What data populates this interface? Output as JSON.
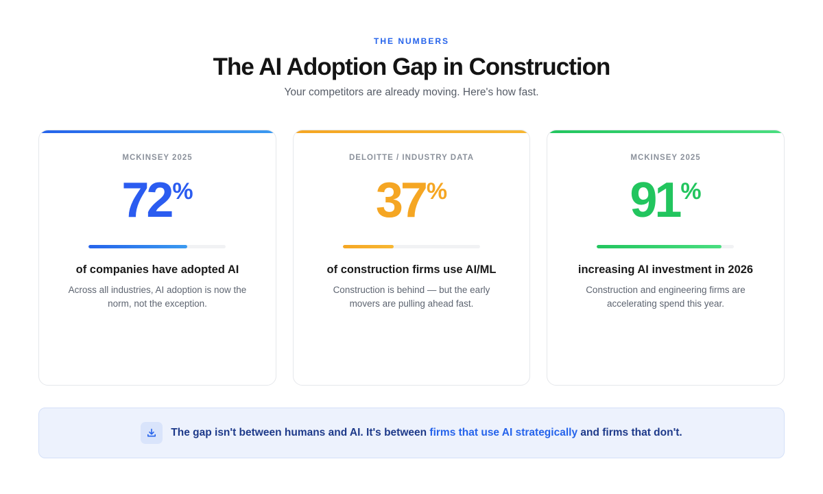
{
  "header": {
    "eyebrow": "THE NUMBERS",
    "title": "The AI Adoption Gap in Construction",
    "subtitle": "Your competitors are already moving. Here's how fast."
  },
  "cards": [
    {
      "source": "MCKINSEY 2025",
      "value": "72",
      "unit": "%",
      "progress": 0.72,
      "color": "#2b5cf0",
      "gradient": [
        "#2563eb",
        "#3b9af0"
      ],
      "label": "of companies have adopted AI",
      "description": "Across all industries, AI adoption is now the norm, not the exception."
    },
    {
      "source": "DELOITTE / INDUSTRY DATA",
      "value": "37",
      "unit": "%",
      "progress": 0.37,
      "color": "#f5a623",
      "gradient": [
        "#f5a623",
        "#f7b733"
      ],
      "label": "of construction firms use AI/ML",
      "description": "Construction is behind — but the early movers are pulling ahead fast."
    },
    {
      "source": "MCKINSEY 2025",
      "value": "91",
      "unit": "%",
      "progress": 0.91,
      "color": "#22c55e",
      "gradient": [
        "#22c55e",
        "#4ade80"
      ],
      "label": "increasing AI investment in 2026",
      "description": "Construction and engineering firms are accelerating spend this year."
    }
  ],
  "banner": {
    "icon": "download-icon",
    "text_before": "The gap isn't between humans and AI. It's between ",
    "link_text": "firms that use AI strategically",
    "text_after": " and firms that don't."
  }
}
